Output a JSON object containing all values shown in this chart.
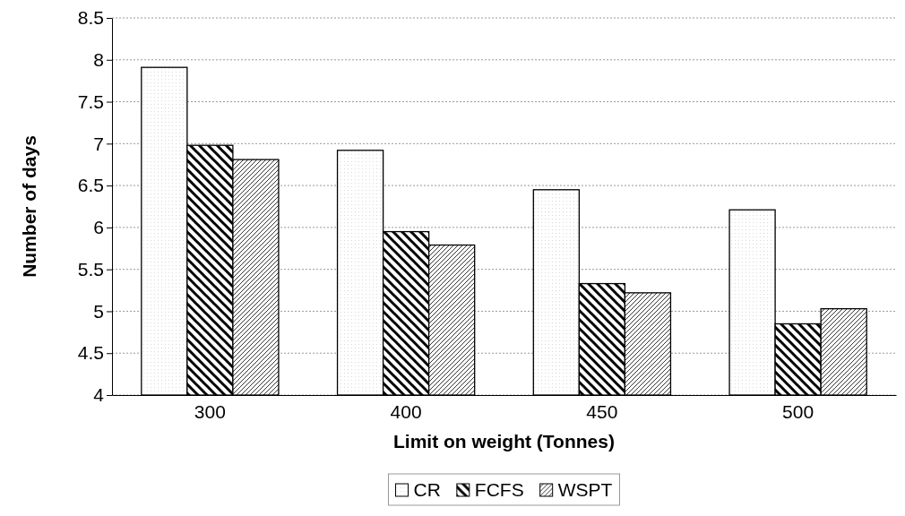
{
  "chart_data": {
    "type": "bar",
    "xlabel": "Limit on weight (Tonnes)",
    "ylabel": "Number of days",
    "categories": [
      "300",
      "400",
      "450",
      "500"
    ],
    "series": [
      {
        "name": "CR",
        "color": "#000000",
        "values": [
          7.91,
          6.92,
          6.45,
          6.21
        ]
      },
      {
        "name": "FCFS",
        "color": "#000000",
        "values": [
          6.98,
          5.95,
          5.33,
          4.85
        ]
      },
      {
        "name": "WSPT",
        "color": "#000000",
        "values": [
          6.81,
          5.79,
          5.22,
          5.03
        ]
      }
    ],
    "ylim": [
      4,
      8.5
    ],
    "yticks": [
      4,
      {
        "value": 4.5,
        "label": "4.5"
      },
      5,
      {
        "value": 5.5,
        "label": "5.5"
      },
      6,
      {
        "value": 6.5,
        "label": "6.5"
      },
      7,
      {
        "value": 7.5,
        "label": "7.5"
      },
      8,
      {
        "value": 8.5,
        "label": "8.5"
      }
    ],
    "grid": "y",
    "legend": "bottom"
  }
}
